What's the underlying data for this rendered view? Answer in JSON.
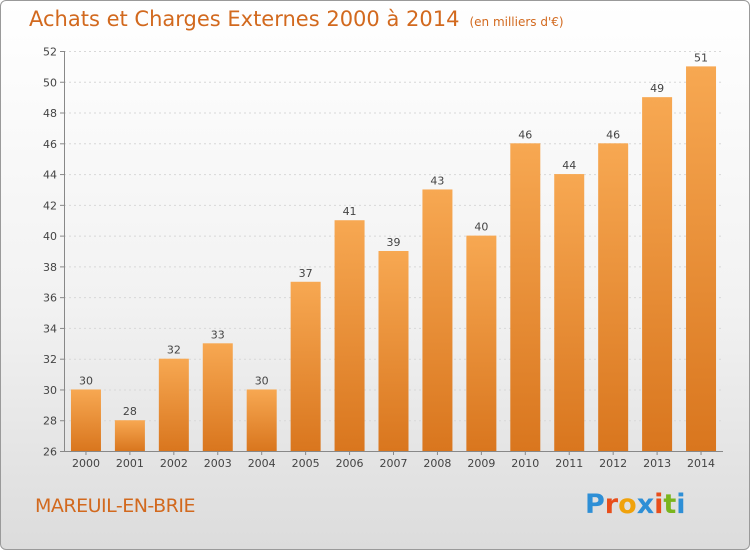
{
  "header": {
    "title": "Achats et Charges Externes 2000 à 2014",
    "subtitle": "(en milliers d'€)"
  },
  "footer": {
    "location": "MAREUIL-EN-BRIE",
    "logo_letters": [
      "P",
      "r",
      "o",
      "x",
      "i",
      "t",
      "i"
    ],
    "logo_colors": [
      "#2e8fd6",
      "#e84e1b",
      "#f0a20b",
      "#2e8fd6",
      "#e84e1b",
      "#7ab51d",
      "#2e8fd6"
    ]
  },
  "chart_data": {
    "type": "bar",
    "title": "Achats et Charges Externes 2000 à 2014",
    "subtitle": "(en milliers d'€)",
    "categories": [
      "2000",
      "2001",
      "2002",
      "2003",
      "2004",
      "2005",
      "2006",
      "2007",
      "2008",
      "2009",
      "2010",
      "2011",
      "2012",
      "2013",
      "2014"
    ],
    "values": [
      30,
      28,
      32,
      33,
      30,
      37,
      41,
      39,
      43,
      40,
      46,
      44,
      46,
      49,
      51
    ],
    "ylim": [
      26,
      52
    ],
    "yticks": [
      26,
      28,
      30,
      32,
      34,
      36,
      38,
      40,
      42,
      44,
      46,
      48,
      50,
      52
    ],
    "grid": true,
    "bar_color_top": "#f7a852",
    "bar_color_bottom": "#d9761e",
    "xlabel": "",
    "ylabel": ""
  }
}
